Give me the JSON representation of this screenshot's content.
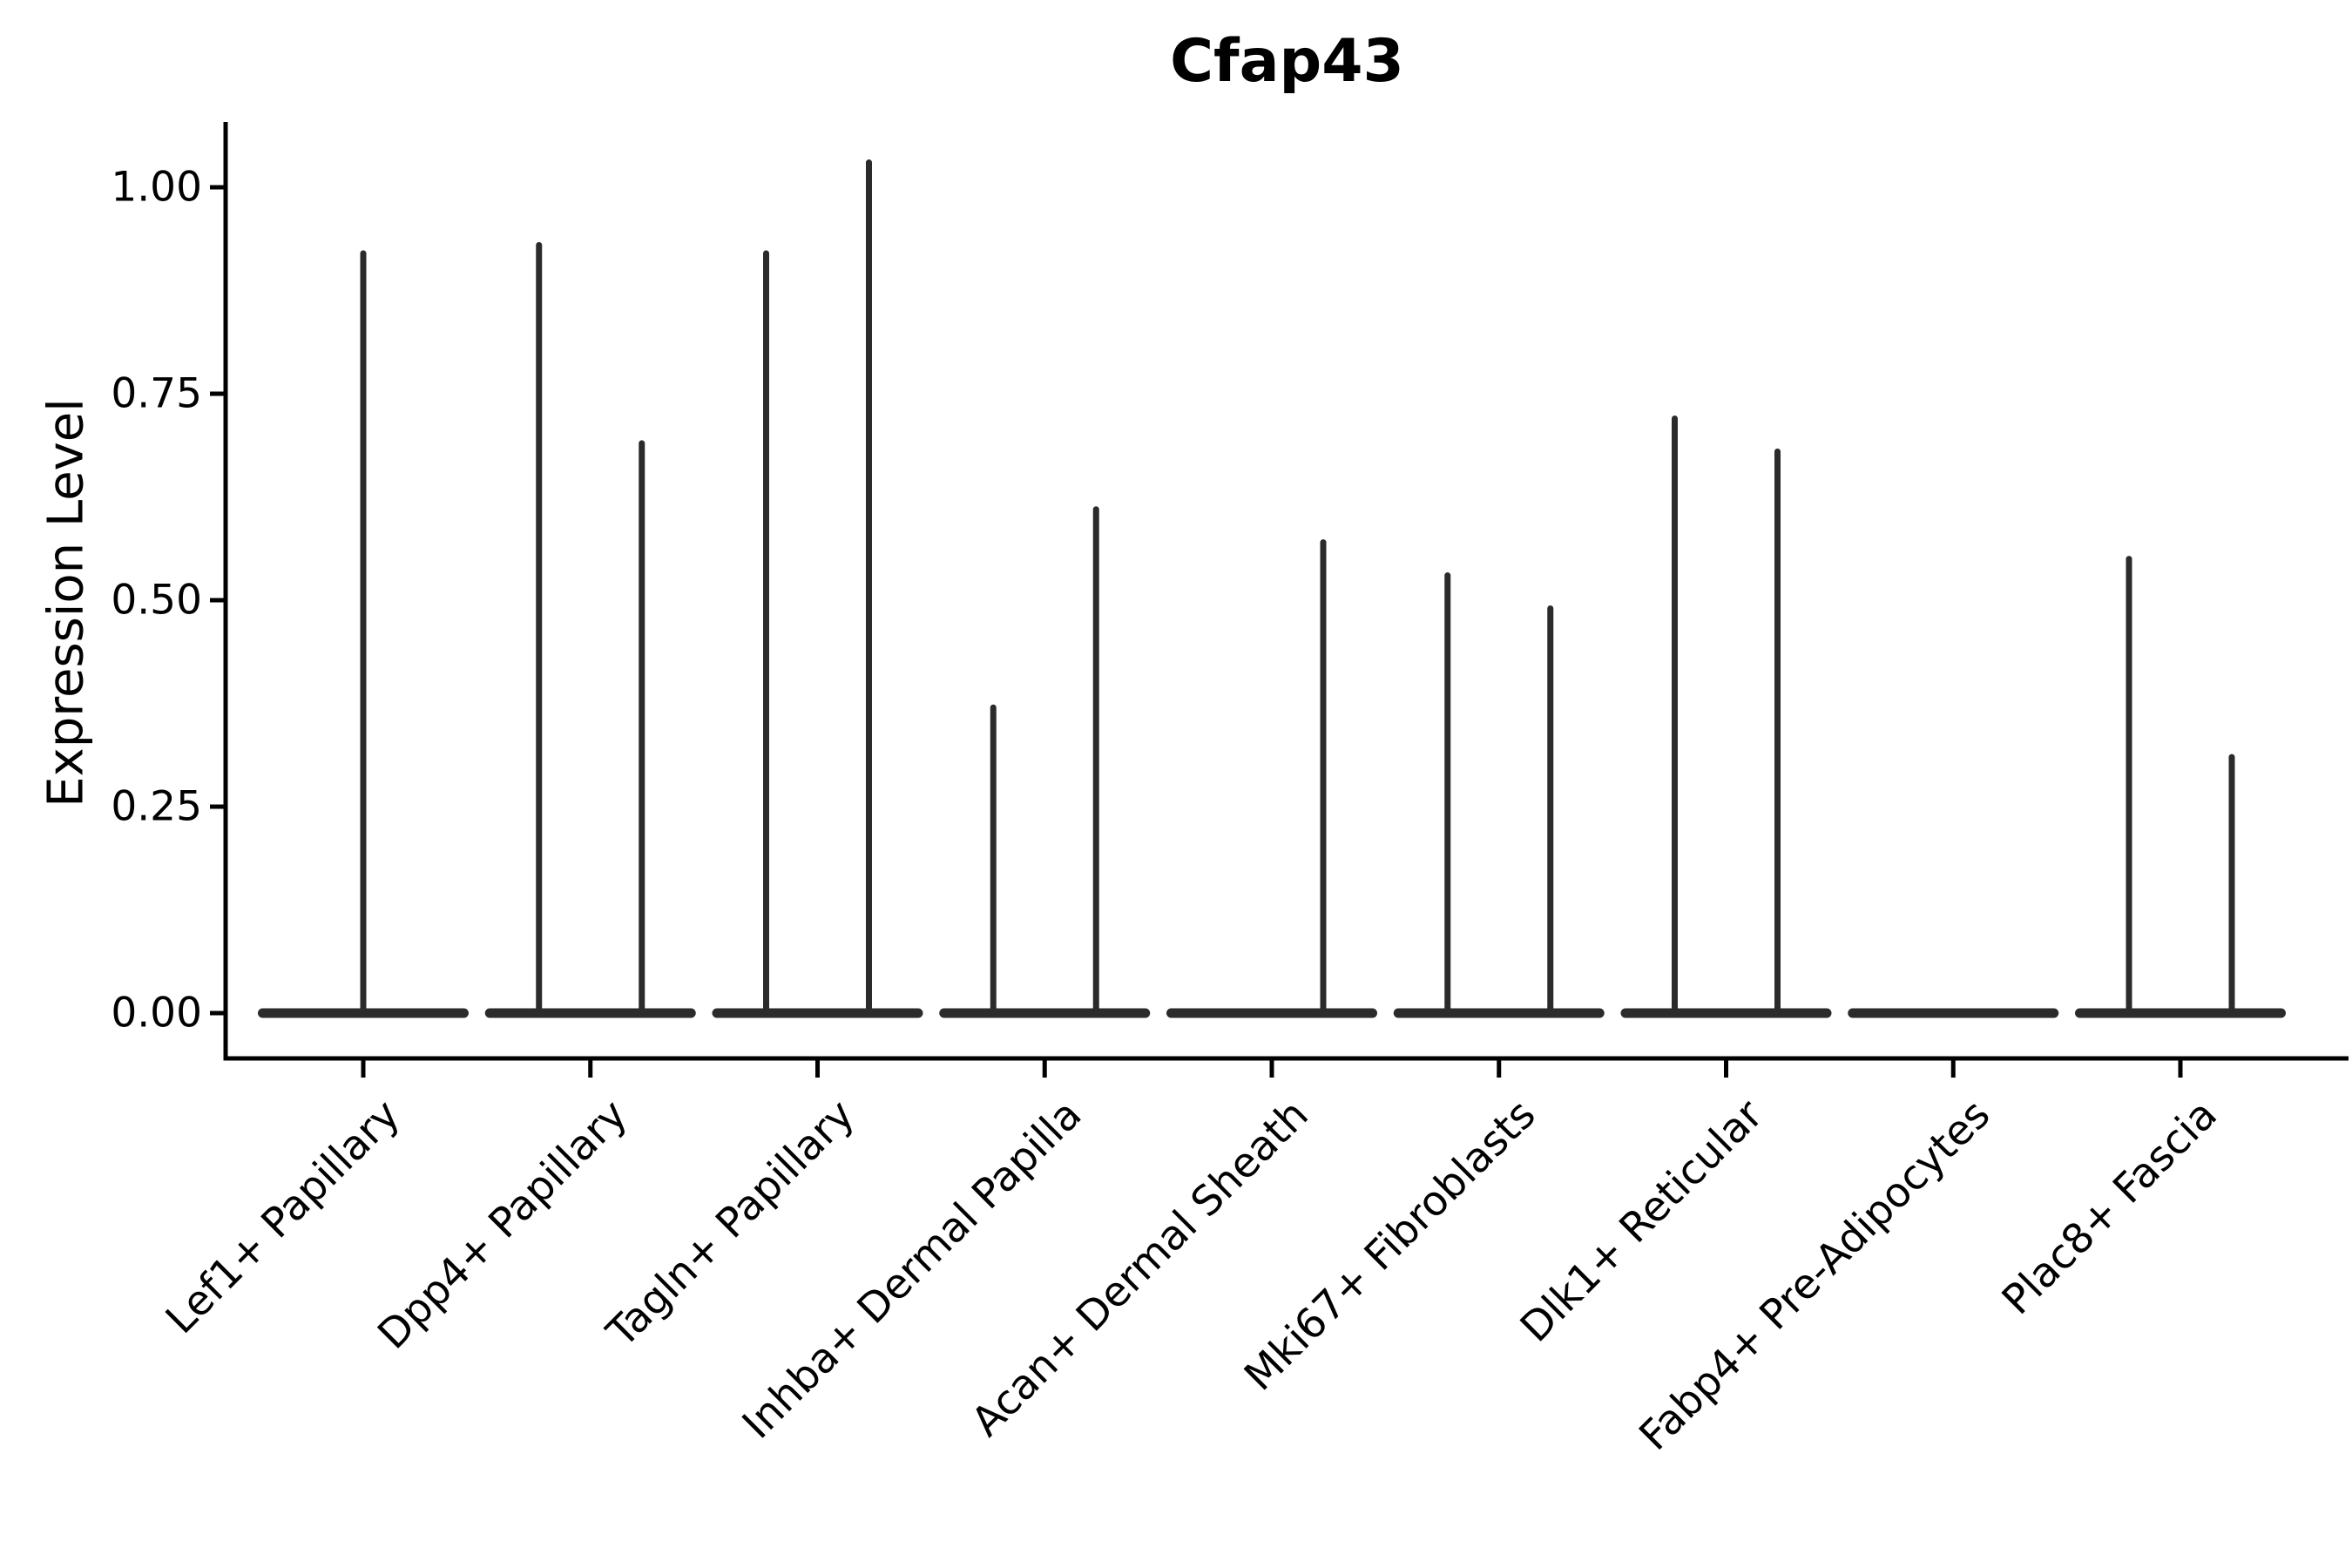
{
  "title": "Cfap43",
  "axes": {
    "ylabel": "Expression Level",
    "y_tick_labels": [
      "0.00",
      "0.25",
      "0.50",
      "0.75",
      "1.00"
    ],
    "y_tick_values": [
      0,
      0.25,
      0.5,
      0.75,
      1.0
    ]
  },
  "colors": {
    "background": "#ffffff",
    "axis": "#000000",
    "text": "#000000",
    "violin": "#2b2b2b"
  },
  "chart_data": {
    "type": "violin",
    "title": "Cfap43",
    "xlabel": "",
    "ylabel": "Expression Level",
    "ylim": [
      0,
      1.08
    ],
    "grid": false,
    "legend": null,
    "y_ticks": [
      0,
      0.25,
      0.5,
      0.75,
      1.0
    ],
    "y_tick_labels": [
      "0.00",
      "0.25",
      "0.50",
      "0.75",
      "1.00"
    ],
    "categories": [
      "Lef1+ Papillary",
      "Dpp4+ Papillary",
      "Tagln+ Papillary",
      "Inhba+ Dermal Papilla",
      "Acan+ Dermal Sheath",
      "Mki67+ Fibroblasts",
      "Dlk1+ Reticular",
      "Fabp4+ Pre-Adipocytes",
      "Plac8+ Fascia"
    ],
    "violins": [
      {
        "category": "Lef1+ Papillary",
        "base": true,
        "spikes": [
          {
            "pos": "center",
            "max": 0.92
          }
        ]
      },
      {
        "category": "Dpp4+ Papillary",
        "base": true,
        "spikes": [
          {
            "pos": "left",
            "max": 0.93
          },
          {
            "pos": "right",
            "max": 0.69
          }
        ]
      },
      {
        "category": "Tagln+ Papillary",
        "base": true,
        "spikes": [
          {
            "pos": "left",
            "max": 0.92
          },
          {
            "pos": "right",
            "max": 1.03
          }
        ]
      },
      {
        "category": "Inhba+ Dermal Papilla",
        "base": true,
        "spikes": [
          {
            "pos": "left",
            "max": 0.37
          },
          {
            "pos": "right",
            "max": 0.61
          }
        ]
      },
      {
        "category": "Acan+ Dermal Sheath",
        "base": true,
        "spikes": [
          {
            "pos": "right",
            "max": 0.57
          }
        ]
      },
      {
        "category": "Mki67+ Fibroblasts",
        "base": true,
        "spikes": [
          {
            "pos": "left",
            "max": 0.53
          },
          {
            "pos": "right",
            "max": 0.49
          }
        ]
      },
      {
        "category": "Dlk1+ Reticular",
        "base": true,
        "spikes": [
          {
            "pos": "left",
            "max": 0.72
          },
          {
            "pos": "right",
            "max": 0.68
          }
        ]
      },
      {
        "category": "Fabp4+ Pre-Adipocytes",
        "base": true,
        "spikes": []
      },
      {
        "category": "Plac8+ Fascia",
        "base": true,
        "spikes": [
          {
            "pos": "left",
            "max": 0.55
          },
          {
            "pos": "right",
            "max": 0.31
          }
        ]
      }
    ]
  }
}
